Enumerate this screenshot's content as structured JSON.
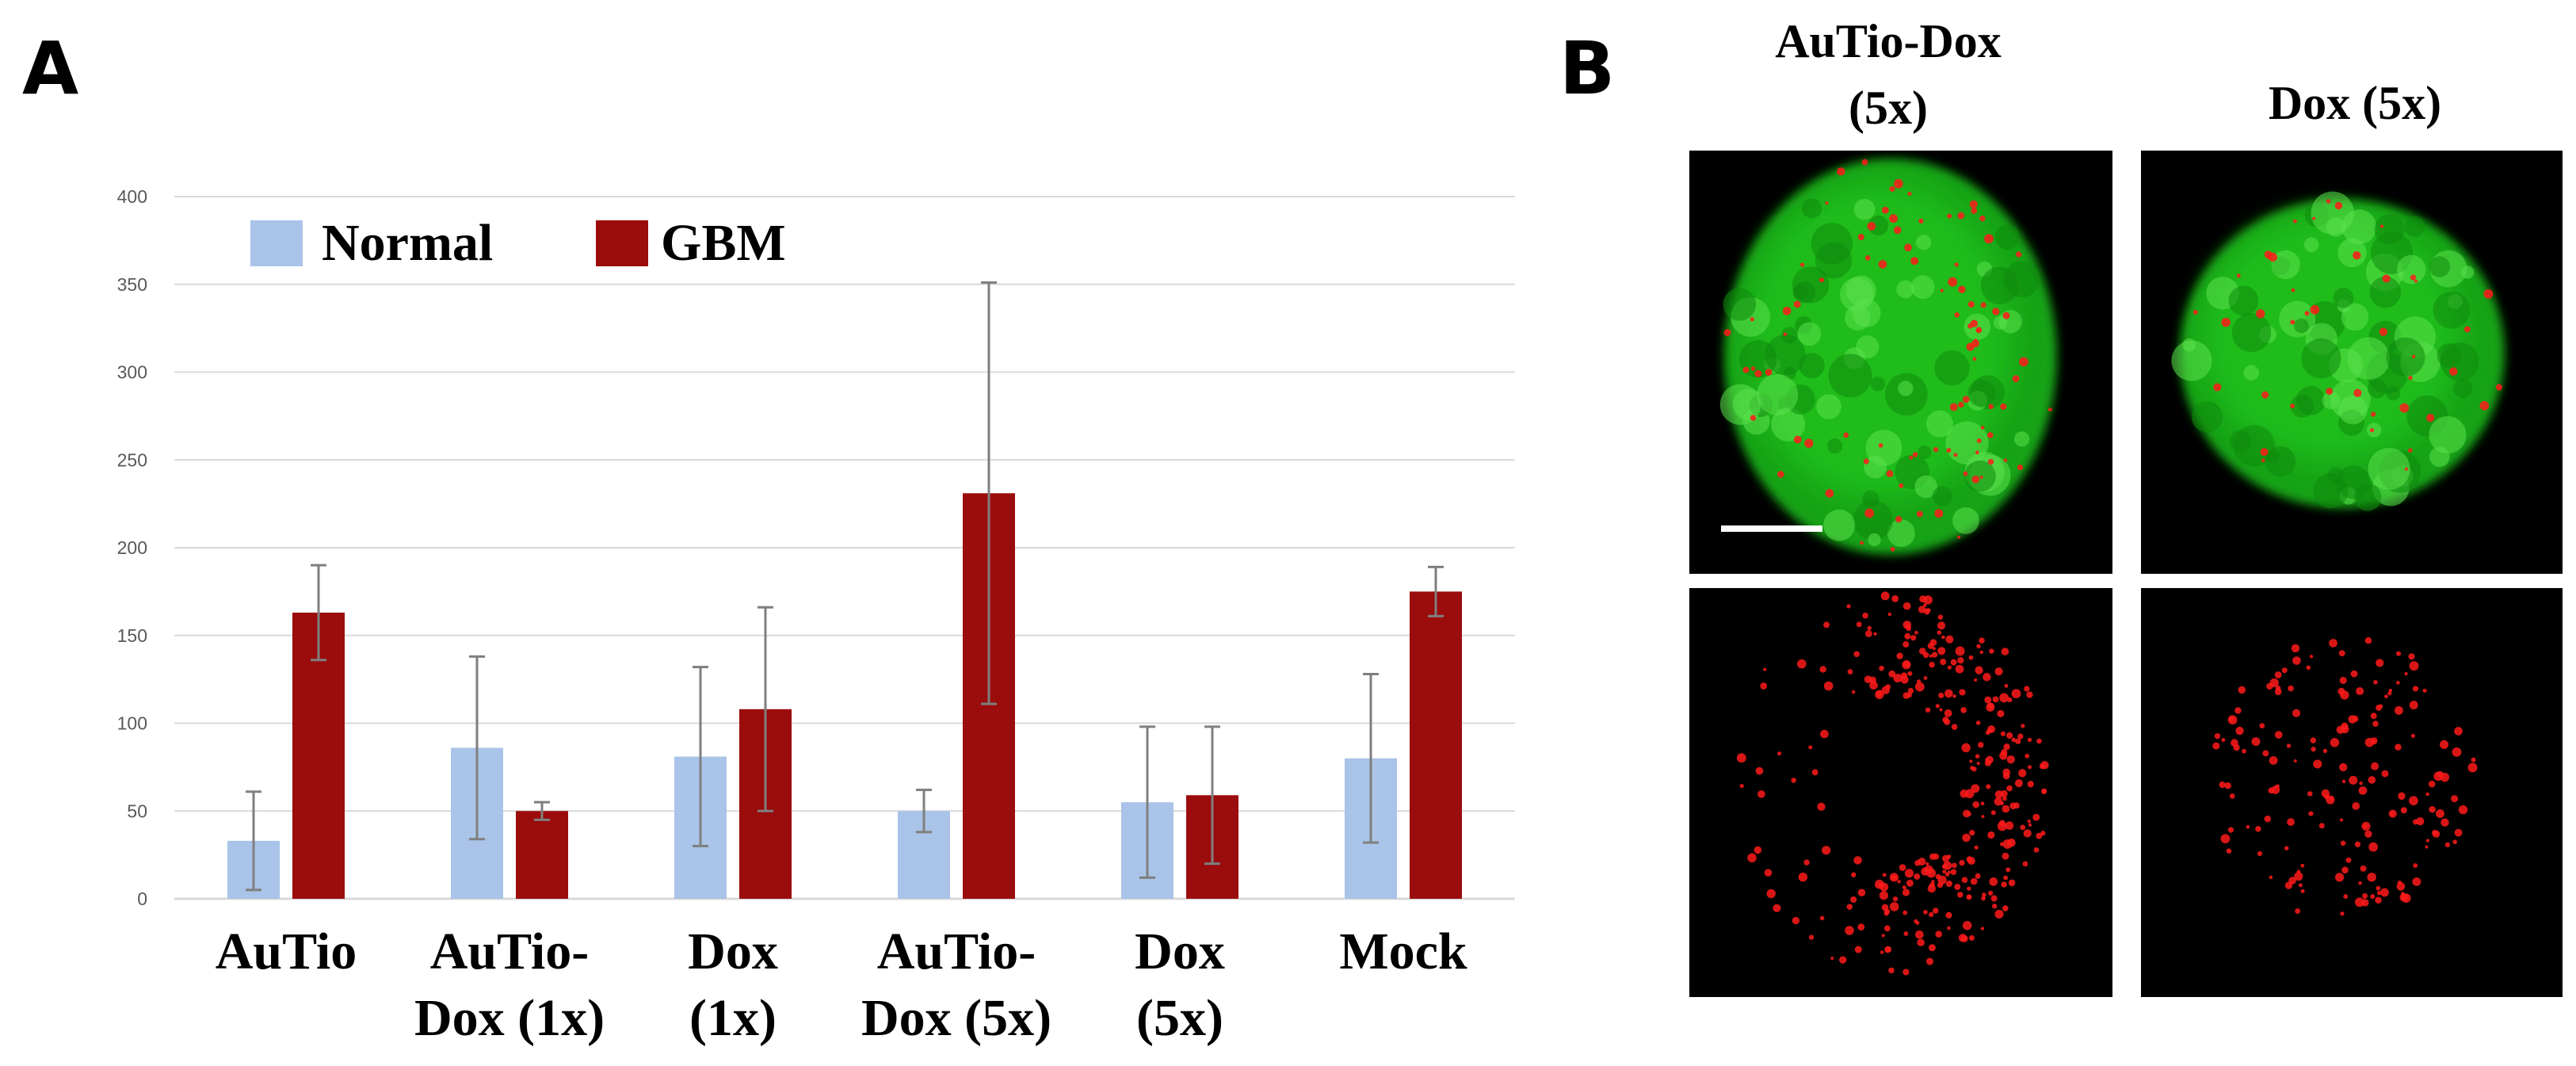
{
  "panels": {
    "a_label": "A",
    "b_label": "B"
  },
  "chart_data": {
    "type": "bar",
    "categories": [
      [
        "AuTio"
      ],
      [
        "AuTio-",
        "Dox (1x)"
      ],
      [
        "Dox",
        "(1x)"
      ],
      [
        "AuTio-",
        "Dox (5x)"
      ],
      [
        "Dox",
        "(5x)"
      ],
      [
        "Mock"
      ]
    ],
    "series": [
      {
        "name": "Normal",
        "color": "#a9c4e8",
        "values": [
          33,
          86,
          81,
          50,
          55,
          80
        ],
        "errors": [
          28,
          52,
          51,
          12,
          43,
          48
        ]
      },
      {
        "name": "GBM",
        "color": "#9b0c0c",
        "values": [
          163,
          50,
          108,
          231,
          59,
          175
        ],
        "errors": [
          27,
          5,
          58,
          120,
          39,
          14
        ]
      }
    ],
    "yticks": [
      0,
      50,
      100,
      150,
      200,
      250,
      300,
      350,
      400
    ],
    "ylim": [
      0,
      400
    ],
    "grid": true,
    "legend_position": "top-left",
    "title": "",
    "xlabel": "",
    "ylabel": ""
  },
  "microscopy": {
    "columns": [
      "AuTio-Dox\n(5x)",
      "Dox (5x)"
    ],
    "panels": [
      {
        "name": "autio-dox-merged",
        "green": true
      },
      {
        "name": "dox-merged",
        "green": true
      },
      {
        "name": "autio-dox-red-channel",
        "green": false
      },
      {
        "name": "dox-red-channel",
        "green": false
      }
    ],
    "colors": {
      "green_stain": "#22c51a",
      "red_stain": "#ff1a1a",
      "background": "#000000"
    }
  }
}
